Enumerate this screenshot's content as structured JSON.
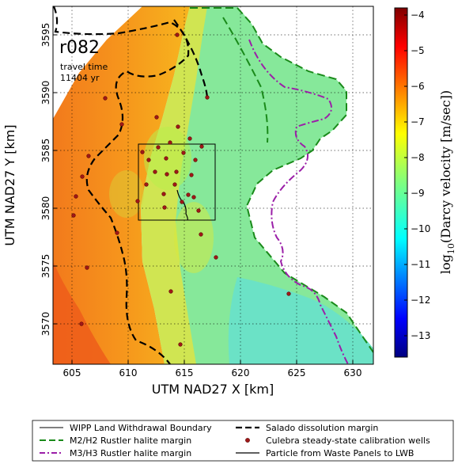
{
  "map": {
    "run_id": "r082",
    "travel_time_label": "travel time",
    "travel_time_value": "11404 yr",
    "x_label": "UTM NAD27 X [km]",
    "y_label": "UTM NAD27 Y [km]",
    "x_ticks": [
      "605",
      "610",
      "615",
      "620",
      "625",
      "630"
    ],
    "y_ticks": [
      "3570",
      "3575",
      "3580",
      "3585",
      "3590",
      "3595"
    ],
    "x_range_km": [
      601.5,
      630
    ],
    "y_range_km": [
      3566.5,
      3597.5
    ]
  },
  "colorbar": {
    "label_pre": "log",
    "label_sub": "10",
    "label_post": "(Darcy velocity [m/sec])",
    "ticks": [
      "−4",
      "−5",
      "−6",
      "−7",
      "−8",
      "−9",
      "−10",
      "−11",
      "−12",
      "−13"
    ],
    "range": [
      -13.6,
      -3.8
    ]
  },
  "legend": {
    "items": [
      {
        "label": "WIPP Land Withdrawal Boundary",
        "color": "#000000"
      },
      {
        "label": "M2/H2 Rustler halite margin",
        "color": "#1a8a1a"
      },
      {
        "label": "M3/H3 Rustler halite margin",
        "color": "#9b1fa8"
      },
      {
        "label": "Salado dissolution margin",
        "color": "#000000"
      },
      {
        "label": "Culebra steady-state calibration wells",
        "color": "#a01818"
      },
      {
        "label": "Particle from Waste Panels to LWB",
        "color": "#000000"
      }
    ]
  }
}
